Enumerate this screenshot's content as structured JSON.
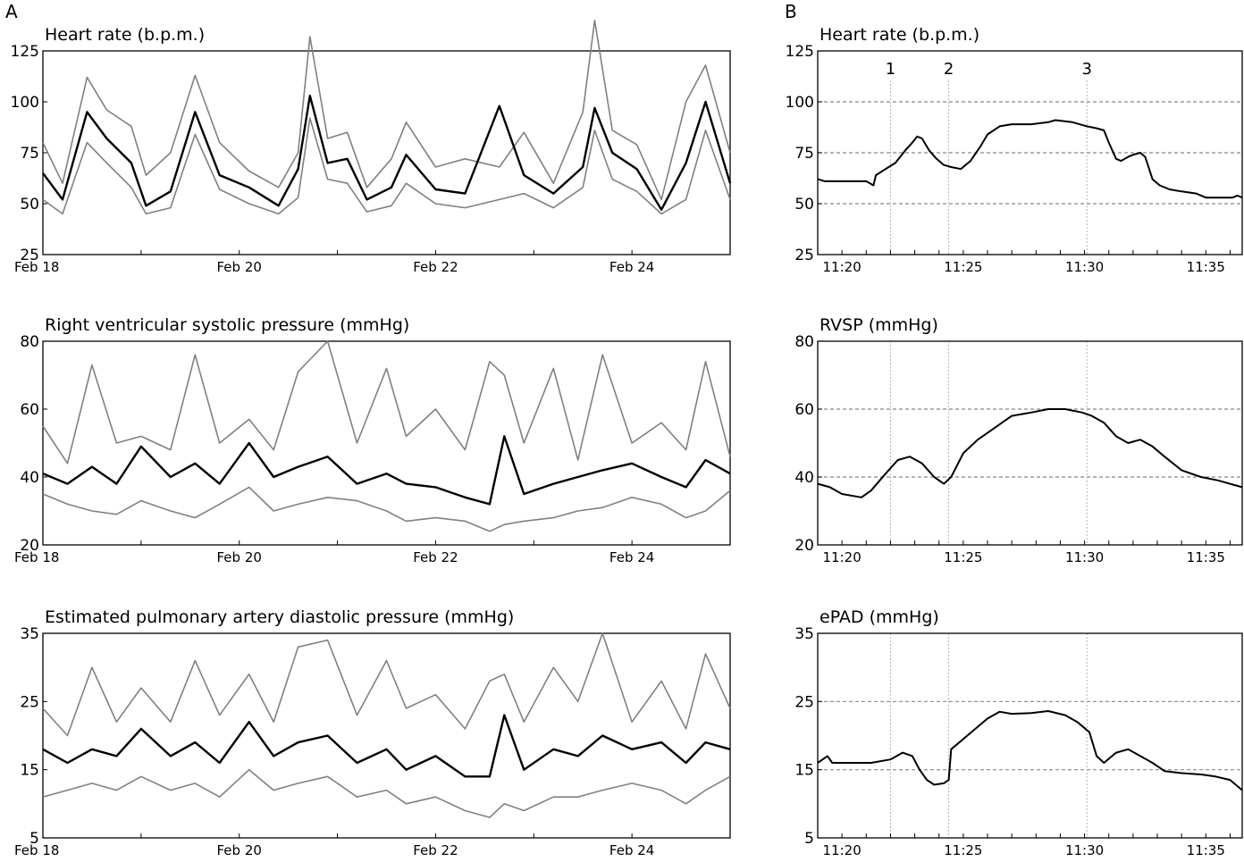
{
  "panels": [
    {
      "letter": "A"
    },
    {
      "letter": "B"
    }
  ],
  "chart_data": [
    {
      "type": "line",
      "panel": "A",
      "title": "Heart rate (b.p.m.)",
      "ylim": [
        25,
        125
      ],
      "yticks": [
        25,
        50,
        75,
        100,
        125
      ],
      "xlim_days": [
        18,
        25
      ],
      "xticks": [
        {
          "v": 18,
          "label": "Feb 18"
        },
        {
          "v": 20,
          "label": "Feb 20"
        },
        {
          "v": 22,
          "label": "Feb 22"
        },
        {
          "v": 24,
          "label": "Feb 24"
        }
      ],
      "grid": [],
      "series": [
        {
          "role": "upper",
          "color": "#808080",
          "x": [
            18,
            18.2,
            18.45,
            18.65,
            18.9,
            19.05,
            19.3,
            19.55,
            19.8,
            20.1,
            20.4,
            20.6,
            20.72,
            20.9,
            21.1,
            21.3,
            21.55,
            21.7,
            22.0,
            22.3,
            22.65,
            22.9,
            23.2,
            23.5,
            23.62,
            23.8,
            24.05,
            24.3,
            24.55,
            24.75,
            25
          ],
          "y": [
            80,
            60,
            112,
            96,
            88,
            64,
            75,
            113,
            80,
            66,
            58,
            75,
            132,
            82,
            85,
            58,
            72,
            90,
            68,
            72,
            68,
            85,
            60,
            95,
            140,
            86,
            79,
            52,
            100,
            118,
            75
          ]
        },
        {
          "role": "mean",
          "color": "#000000",
          "x": [
            18,
            18.2,
            18.45,
            18.65,
            18.9,
            19.05,
            19.3,
            19.55,
            19.8,
            20.1,
            20.4,
            20.6,
            20.72,
            20.9,
            21.1,
            21.3,
            21.55,
            21.7,
            22.0,
            22.3,
            22.65,
            22.9,
            23.2,
            23.5,
            23.62,
            23.8,
            24.05,
            24.3,
            24.55,
            24.75,
            25
          ],
          "y": [
            65,
            52,
            95,
            82,
            70,
            49,
            56,
            95,
            64,
            58,
            49,
            67,
            103,
            70,
            72,
            52,
            58,
            74,
            57,
            55,
            98,
            64,
            55,
            68,
            97,
            75,
            67,
            47,
            70,
            100,
            60
          ]
        },
        {
          "role": "lower",
          "color": "#808080",
          "x": [
            18,
            18.2,
            18.45,
            18.65,
            18.9,
            19.05,
            19.3,
            19.55,
            19.8,
            20.1,
            20.4,
            20.6,
            20.72,
            20.9,
            21.1,
            21.3,
            21.55,
            21.7,
            22.0,
            22.3,
            22.65,
            22.9,
            23.2,
            23.5,
            23.62,
            23.8,
            24.05,
            24.3,
            24.55,
            24.75,
            25
          ],
          "y": [
            52,
            45,
            80,
            70,
            58,
            45,
            48,
            84,
            57,
            50,
            45,
            53,
            92,
            62,
            60,
            46,
            49,
            60,
            50,
            48,
            52,
            55,
            48,
            58,
            86,
            62,
            56,
            45,
            52,
            86,
            52
          ]
        }
      ]
    },
    {
      "type": "line",
      "panel": "A",
      "title": "Right ventricular systolic pressure (mmHg)",
      "ylim": [
        20,
        80
      ],
      "yticks": [
        20,
        40,
        60,
        80
      ],
      "xlim_days": [
        18,
        25
      ],
      "xticks": [
        {
          "v": 18,
          "label": "Feb 18"
        },
        {
          "v": 20,
          "label": "Feb 20"
        },
        {
          "v": 22,
          "label": "Feb 22"
        },
        {
          "v": 24,
          "label": "Feb 24"
        }
      ],
      "grid": [],
      "series": [
        {
          "role": "upper",
          "color": "#808080",
          "x": [
            18,
            18.25,
            18.5,
            18.75,
            19.0,
            19.3,
            19.55,
            19.8,
            20.1,
            20.35,
            20.6,
            20.9,
            21.2,
            21.5,
            21.7,
            22.0,
            22.3,
            22.55,
            22.7,
            22.9,
            23.2,
            23.45,
            23.7,
            24.0,
            24.3,
            24.55,
            24.75,
            25
          ],
          "y": [
            55,
            44,
            73,
            50,
            52,
            48,
            76,
            50,
            57,
            48,
            71,
            80,
            50,
            72,
            52,
            60,
            48,
            74,
            70,
            50,
            72,
            45,
            76,
            50,
            56,
            48,
            74,
            46
          ]
        },
        {
          "role": "mean",
          "color": "#000000",
          "x": [
            18,
            18.25,
            18.5,
            18.75,
            19.0,
            19.3,
            19.55,
            19.8,
            20.1,
            20.35,
            20.6,
            20.9,
            21.2,
            21.5,
            21.7,
            22.0,
            22.3,
            22.55,
            22.7,
            22.9,
            23.2,
            23.45,
            23.7,
            24.0,
            24.3,
            24.55,
            24.75,
            25
          ],
          "y": [
            41,
            38,
            43,
            38,
            49,
            40,
            44,
            38,
            50,
            40,
            43,
            46,
            38,
            41,
            38,
            37,
            34,
            32,
            52,
            35,
            38,
            40,
            42,
            44,
            40,
            37,
            45,
            41
          ]
        },
        {
          "role": "lower",
          "color": "#808080",
          "x": [
            18,
            18.25,
            18.5,
            18.75,
            19.0,
            19.3,
            19.55,
            19.8,
            20.1,
            20.35,
            20.6,
            20.9,
            21.2,
            21.5,
            21.7,
            22.0,
            22.3,
            22.55,
            22.7,
            22.9,
            23.2,
            23.45,
            23.7,
            24.0,
            24.3,
            24.55,
            24.75,
            25
          ],
          "y": [
            35,
            32,
            30,
            29,
            33,
            30,
            28,
            32,
            37,
            30,
            32,
            34,
            33,
            30,
            27,
            28,
            27,
            24,
            26,
            27,
            28,
            30,
            31,
            34,
            32,
            28,
            30,
            36
          ]
        }
      ]
    },
    {
      "type": "line",
      "panel": "A",
      "title": "Estimated pulmonary artery diastolic pressure (mmHg)",
      "ylim": [
        5,
        35
      ],
      "yticks": [
        5,
        15,
        25,
        35
      ],
      "xlim_days": [
        18,
        25
      ],
      "xticks": [
        {
          "v": 18,
          "label": "Feb 18"
        },
        {
          "v": 20,
          "label": "Feb 20"
        },
        {
          "v": 22,
          "label": "Feb 22"
        },
        {
          "v": 24,
          "label": "Feb 24"
        }
      ],
      "grid": [],
      "series": [
        {
          "role": "upper",
          "color": "#808080",
          "x": [
            18,
            18.25,
            18.5,
            18.75,
            19.0,
            19.3,
            19.55,
            19.8,
            20.1,
            20.35,
            20.6,
            20.9,
            21.2,
            21.5,
            21.7,
            22.0,
            22.3,
            22.55,
            22.7,
            22.9,
            23.2,
            23.45,
            23.7,
            24.0,
            24.3,
            24.55,
            24.75,
            25
          ],
          "y": [
            24,
            20,
            30,
            22,
            27,
            22,
            31,
            23,
            29,
            22,
            33,
            34,
            23,
            31,
            24,
            26,
            21,
            28,
            29,
            22,
            30,
            25,
            35,
            22,
            28,
            21,
            32,
            24
          ]
        },
        {
          "role": "mean",
          "color": "#000000",
          "x": [
            18,
            18.25,
            18.5,
            18.75,
            19.0,
            19.3,
            19.55,
            19.8,
            20.1,
            20.35,
            20.6,
            20.9,
            21.2,
            21.5,
            21.7,
            22.0,
            22.3,
            22.55,
            22.7,
            22.9,
            23.2,
            23.45,
            23.7,
            24.0,
            24.3,
            24.55,
            24.75,
            25
          ],
          "y": [
            18,
            16,
            18,
            17,
            21,
            17,
            19,
            16,
            22,
            17,
            19,
            20,
            16,
            18,
            15,
            17,
            14,
            14,
            23,
            15,
            18,
            17,
            20,
            18,
            19,
            16,
            19,
            18
          ]
        },
        {
          "role": "lower",
          "color": "#808080",
          "x": [
            18,
            18.25,
            18.5,
            18.75,
            19.0,
            19.3,
            19.55,
            19.8,
            20.1,
            20.35,
            20.6,
            20.9,
            21.2,
            21.5,
            21.7,
            22.0,
            22.3,
            22.55,
            22.7,
            22.9,
            23.2,
            23.45,
            23.7,
            24.0,
            24.3,
            24.55,
            24.75,
            25
          ],
          "y": [
            11,
            12,
            13,
            12,
            14,
            12,
            13,
            11,
            15,
            12,
            13,
            14,
            11,
            12,
            10,
            11,
            9,
            8,
            10,
            9,
            11,
            11,
            12,
            13,
            12,
            10,
            12,
            14
          ]
        }
      ]
    },
    {
      "type": "line",
      "panel": "B",
      "title": "Heart rate (b.p.m.)",
      "ylim": [
        25,
        125
      ],
      "yticks": [
        25,
        50,
        75,
        100,
        125
      ],
      "xlim_min": [
        1159,
        1176.5
      ],
      "xticks": [
        {
          "v": 1160,
          "label": "11:20"
        },
        {
          "v": 1165,
          "label": "11:25"
        },
        {
          "v": 1170,
          "label": "11:30"
        },
        {
          "v": 1175,
          "label": "11:35"
        }
      ],
      "grid": [
        50,
        75,
        100
      ],
      "markers": [
        {
          "v": 1162,
          "label": "1"
        },
        {
          "v": 1164.4,
          "label": "2"
        },
        {
          "v": 1170.1,
          "label": "3"
        }
      ],
      "series": [
        {
          "role": "value",
          "color": "#000000",
          "x": [
            1159,
            1159.3,
            1159.6,
            1160.5,
            1161.0,
            1161.3,
            1161.4,
            1161.8,
            1162.2,
            1162.6,
            1162.9,
            1163.1,
            1163.3,
            1163.6,
            1163.9,
            1164.2,
            1164.5,
            1164.9,
            1165.3,
            1165.7,
            1166.0,
            1166.5,
            1167.0,
            1167.8,
            1168.5,
            1168.8,
            1169.5,
            1170.1,
            1170.5,
            1170.8,
            1171.0,
            1171.3,
            1171.5,
            1171.8,
            1172.0,
            1172.3,
            1172.5,
            1172.8,
            1173.1,
            1173.5,
            1174.0,
            1174.6,
            1175.0,
            1175.5,
            1176.1,
            1176.3,
            1176.5
          ],
          "y": [
            62,
            61,
            61,
            61,
            61,
            59,
            64,
            67,
            70,
            76,
            80,
            83,
            82,
            76,
            72,
            69,
            68,
            67,
            71,
            78,
            84,
            88,
            89,
            89,
            90,
            91,
            90,
            88,
            87,
            86,
            80,
            72,
            71,
            73,
            74,
            75,
            73,
            62,
            59,
            57,
            56,
            55,
            53,
            53,
            53,
            54,
            53
          ]
        }
      ]
    },
    {
      "type": "line",
      "panel": "B",
      "title": "RVSP (mmHg)",
      "ylim": [
        20,
        80
      ],
      "yticks": [
        20,
        40,
        60,
        80
      ],
      "xlim_min": [
        1159,
        1176.5
      ],
      "xticks": [
        {
          "v": 1160,
          "label": "11:20"
        },
        {
          "v": 1165,
          "label": "11:25"
        },
        {
          "v": 1170,
          "label": "11:30"
        },
        {
          "v": 1175,
          "label": "11:35"
        }
      ],
      "grid": [
        40,
        60
      ],
      "series": [
        {
          "role": "value",
          "color": "#000000",
          "x": [
            1159,
            1159.5,
            1160,
            1160.8,
            1161.2,
            1161.8,
            1162.3,
            1162.8,
            1163.3,
            1163.8,
            1164.2,
            1164.5,
            1165,
            1165.6,
            1166.2,
            1167.0,
            1167.8,
            1168.5,
            1169.2,
            1169.9,
            1170.3,
            1170.8,
            1171.3,
            1171.8,
            1172.3,
            1172.8,
            1173.3,
            1174.0,
            1174.8,
            1175.5,
            1176.0,
            1176.5
          ],
          "y": [
            38,
            37,
            35,
            34,
            36,
            41,
            45,
            46,
            44,
            40,
            38,
            40,
            47,
            51,
            54,
            58,
            59,
            60,
            60,
            59,
            58,
            56,
            52,
            50,
            51,
            49,
            46,
            42,
            40,
            39,
            38,
            37
          ]
        }
      ]
    },
    {
      "type": "line",
      "panel": "B",
      "title": "ePAD (mmHg)",
      "ylim": [
        5,
        35
      ],
      "yticks": [
        5,
        15,
        25,
        35
      ],
      "xlim_min": [
        1159,
        1176.5
      ],
      "xticks": [
        {
          "v": 1160,
          "label": "11:20"
        },
        {
          "v": 1165,
          "label": "11:25"
        },
        {
          "v": 1170,
          "label": "11:30"
        },
        {
          "v": 1175,
          "label": "11:35"
        }
      ],
      "grid": [
        15,
        25
      ],
      "series": [
        {
          "role": "value",
          "color": "#000000",
          "x": [
            1159,
            1159.4,
            1159.6,
            1160.0,
            1160.8,
            1161.2,
            1162.0,
            1162.5,
            1162.9,
            1163.2,
            1163.5,
            1163.8,
            1164.2,
            1164.4,
            1164.5,
            1165.0,
            1165.5,
            1166.0,
            1166.5,
            1167.0,
            1167.8,
            1168.5,
            1169.2,
            1169.7,
            1170.2,
            1170.5,
            1170.8,
            1171.3,
            1171.8,
            1172.3,
            1172.8,
            1173.3,
            1174.0,
            1174.8,
            1175.4,
            1176.0,
            1176.5
          ],
          "y": [
            16,
            17,
            16,
            16,
            16,
            16,
            16.5,
            17.5,
            17,
            15,
            13.5,
            12.8,
            13,
            13.5,
            18,
            19.5,
            21,
            22.5,
            23.5,
            23.2,
            23.3,
            23.6,
            23,
            22,
            20.5,
            17,
            16,
            17.5,
            18,
            17,
            16,
            14.8,
            14.5,
            14.3,
            14,
            13.5,
            12
          ]
        }
      ]
    }
  ]
}
